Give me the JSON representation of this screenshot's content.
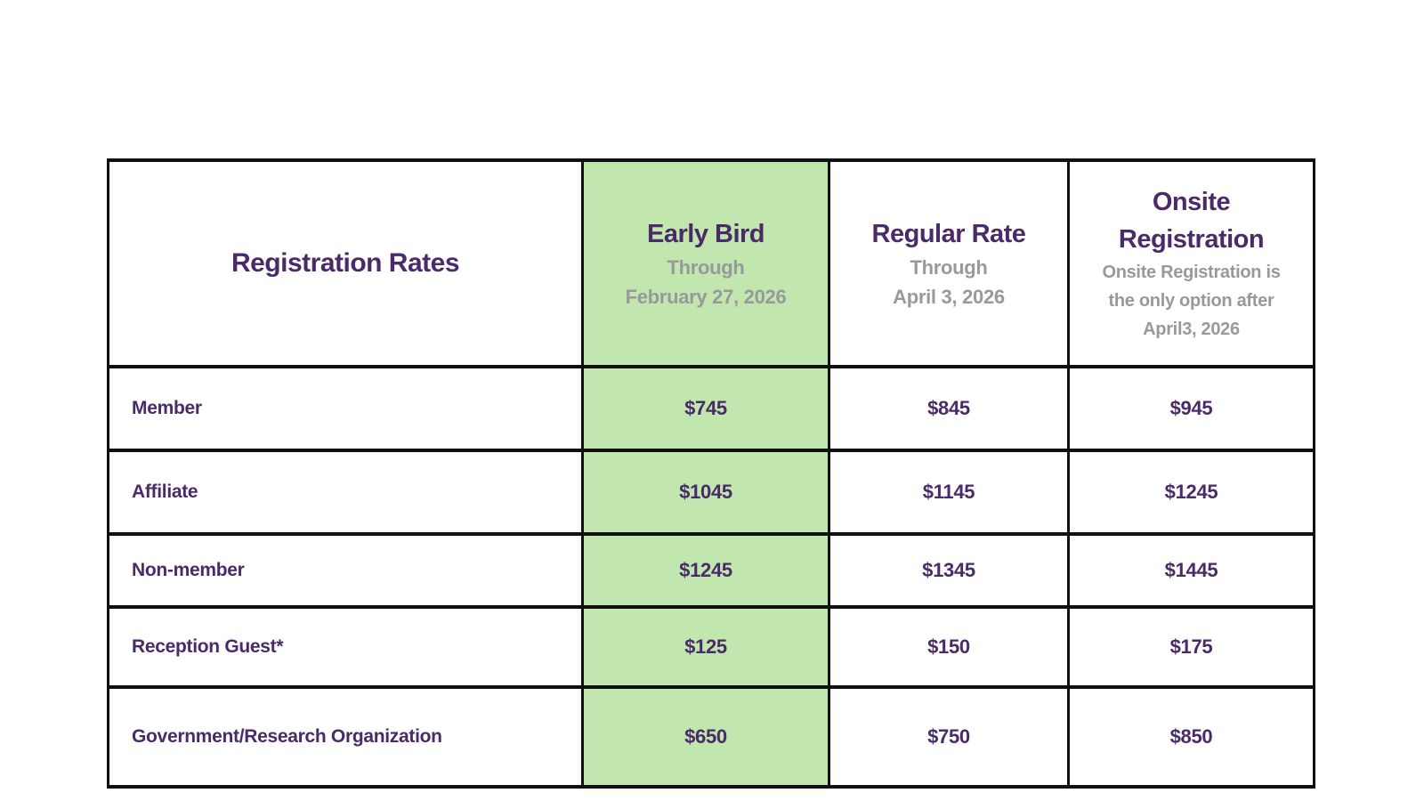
{
  "page": {
    "background_color": "#ffffff"
  },
  "table": {
    "colors": {
      "accent_purple": "#4a2a68",
      "muted_gray": "#98999b",
      "highlight_green": "#c1e7ae",
      "border": "#101010"
    },
    "header": {
      "row_title": "Registration Rates",
      "early_bird": {
        "title": "Early Bird",
        "subtitle_lines": [
          "Through",
          "February 27, 2026"
        ]
      },
      "regular": {
        "title": "Regular Rate",
        "subtitle_lines": [
          "Through",
          "April 3, 2026"
        ]
      },
      "onsite": {
        "title_lines": [
          "Onsite",
          "Registration"
        ],
        "subtitle_lines": [
          "Onsite Registration is",
          "the only option after",
          "April3, 2026"
        ]
      }
    },
    "rows": [
      {
        "label": "Member",
        "early_bird": "$745",
        "regular": "$845",
        "onsite": "$945"
      },
      {
        "label": "Affiliate",
        "early_bird": "$1045",
        "regular": "$1145",
        "onsite": "$1245"
      },
      {
        "label": "Non-member",
        "early_bird": "$1245",
        "regular": "$1345",
        "onsite": "$1445"
      },
      {
        "label": "Reception Guest*",
        "early_bird": "$125",
        "regular": "$150",
        "onsite": "$175"
      },
      {
        "label": "Government/Research Organization",
        "early_bird": "$650",
        "regular": "$750",
        "onsite": "$850"
      }
    ]
  }
}
